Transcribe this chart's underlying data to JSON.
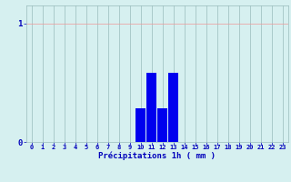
{
  "hours": [
    0,
    1,
    2,
    3,
    4,
    5,
    6,
    7,
    8,
    9,
    10,
    11,
    12,
    13,
    14,
    15,
    16,
    17,
    18,
    19,
    20,
    21,
    22,
    23
  ],
  "values": [
    0,
    0,
    0,
    0,
    0,
    0,
    0,
    0,
    0,
    0,
    0.28,
    0.58,
    0.28,
    0.58,
    0,
    0,
    0,
    0,
    0,
    0,
    0,
    0,
    0,
    0
  ],
  "bar_color": "#0000ee",
  "bg_color": "#d6f0f0",
  "grid_color_h": "#ee9999",
  "grid_color_v": "#99bbbb",
  "xlabel": "Précipitations 1h ( mm )",
  "xlabel_color": "#0000bb",
  "tick_color": "#0000bb",
  "ytick_labels": [
    "0",
    "1"
  ],
  "ytick_vals": [
    0,
    1
  ],
  "ylim": [
    0,
    1.15
  ],
  "xlim": [
    -0.5,
    23.5
  ]
}
